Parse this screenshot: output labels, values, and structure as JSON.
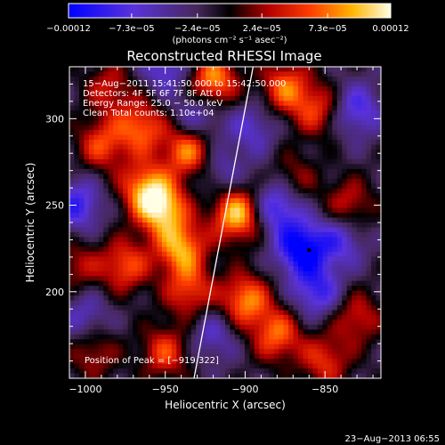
{
  "chart_data": {
    "type": "heatmap",
    "title": "Reconstructed RHESSI Image",
    "xlabel": "Heliocentric X (arcsec)",
    "ylabel": "Heliocentric Y (arcsec)",
    "xlim": [
      -1010,
      -815
    ],
    "ylim": [
      150,
      330
    ],
    "x_ticks": [
      -1000,
      -950,
      -900,
      -850
    ],
    "x_tick_labels": [
      "−1000",
      "−950",
      "−900",
      "−850"
    ],
    "y_ticks": [
      200,
      250,
      300
    ],
    "y_tick_labels": [
      "200",
      "250",
      "300"
    ],
    "colorbar": {
      "range": [
        -0.00012,
        0.00012
      ],
      "ticks": [
        -0.00012,
        -7.3e-05,
        -2.4e-05,
        2.4e-05,
        7.3e-05,
        0.00012
      ],
      "tick_labels": [
        "−0.00012",
        "−7.3e−05",
        "−2.4e−05",
        "2.4e−05",
        "7.3e−05",
        "0.00012"
      ],
      "unit_label": "(photons cm⁻² s⁻¹ asec⁻²)"
    },
    "annotations": [
      "15−Aug−2011 15:41:50.000 to 15:42:50.000",
      "Detectors: 4F 5F 6F 7F 8F  Att 0",
      "Energy Range: 25.0 − 50.0 keV",
      "Clean    Total counts: 1.10e+04"
    ],
    "peak_label": "Position of Peak = [−919,322]",
    "peak_position": [
      -919,
      322
    ],
    "marker_position": [
      -860,
      224
    ],
    "limb_line": [
      [
        -932,
        150
      ],
      [
        -895,
        330
      ]
    ],
    "hotspots": [
      {
        "x": -905,
        "y": 245,
        "v": 1.0
      },
      {
        "x": -952,
        "y": 248,
        "v": 0.95
      },
      {
        "x": -935,
        "y": 282,
        "v": 0.85
      },
      {
        "x": -965,
        "y": 295,
        "v": 0.7
      },
      {
        "x": -990,
        "y": 285,
        "v": 0.6
      },
      {
        "x": -920,
        "y": 322,
        "v": 0.85
      },
      {
        "x": -875,
        "y": 318,
        "v": 0.7
      },
      {
        "x": -855,
        "y": 305,
        "v": 0.55
      },
      {
        "x": -900,
        "y": 195,
        "v": 0.8
      },
      {
        "x": -880,
        "y": 175,
        "v": 0.7
      },
      {
        "x": -935,
        "y": 200,
        "v": 0.6
      },
      {
        "x": -975,
        "y": 215,
        "v": 0.65
      },
      {
        "x": -835,
        "y": 250,
        "v": 0.5
      },
      {
        "x": -830,
        "y": 185,
        "v": 0.5
      },
      {
        "x": -870,
        "y": 265,
        "v": 0.4
      },
      {
        "x": -995,
        "y": 165,
        "v": 0.45
      },
      {
        "x": -950,
        "y": 165,
        "v": 0.6
      },
      {
        "x": -850,
        "y": 160,
        "v": 0.55
      },
      {
        "x": -940,
        "y": 225,
        "v": 0.85
      },
      {
        "x": -1005,
        "y": 215,
        "v": 0.4
      },
      {
        "x": -963,
        "y": 260,
        "v": 0.75
      },
      {
        "x": -985,
        "y": 318,
        "v": 0.45
      },
      {
        "x": -865,
        "y": 225,
        "v": -0.9
      },
      {
        "x": -930,
        "y": 300,
        "v": -0.5
      },
      {
        "x": -950,
        "y": 330,
        "v": -0.5
      },
      {
        "x": -1005,
        "y": 250,
        "v": -0.6
      },
      {
        "x": -880,
        "y": 250,
        "v": -0.7
      },
      {
        "x": -855,
        "y": 200,
        "v": -0.6
      },
      {
        "x": -830,
        "y": 305,
        "v": -0.55
      },
      {
        "x": -920,
        "y": 175,
        "v": -0.4
      },
      {
        "x": -1000,
        "y": 185,
        "v": -0.4
      },
      {
        "x": -915,
        "y": 270,
        "v": -0.35
      },
      {
        "x": -840,
        "y": 230,
        "v": -0.5
      },
      {
        "x": -895,
        "y": 295,
        "v": -0.4
      }
    ]
  },
  "footer": {
    "timestamp": "23−Aug−2013 06:55"
  }
}
